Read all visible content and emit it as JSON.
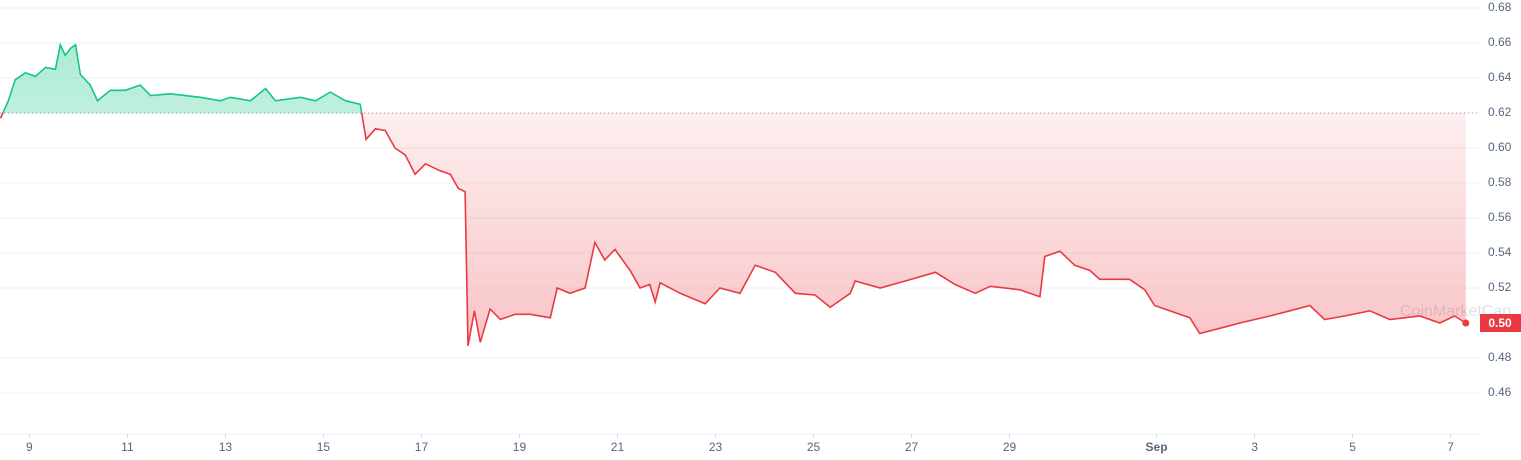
{
  "chart_data": {
    "type": "line",
    "x": [
      8.41,
      8.57,
      8.71,
      8.92,
      9.12,
      9.33,
      9.53,
      9.63,
      9.73,
      9.84,
      9.94,
      10.04,
      10.24,
      10.39,
      10.65,
      10.96,
      11.26,
      11.47,
      11.88,
      12.49,
      12.9,
      13.1,
      13.51,
      13.82,
      14.02,
      14.53,
      14.84,
      15.14,
      15.45,
      15.75,
      15.87,
      16.06,
      16.26,
      16.46,
      16.67,
      16.87,
      17.08,
      17.38,
      17.59,
      17.75,
      17.89,
      17.95,
      18.08,
      18.2,
      18.4,
      18.61,
      18.91,
      19.22,
      19.63,
      19.77,
      20.03,
      20.34,
      20.54,
      20.74,
      20.95,
      21.26,
      21.46,
      21.66,
      21.77,
      21.87,
      22.28,
      22.79,
      23.09,
      23.5,
      23.81,
      24.22,
      24.63,
      25.03,
      25.34,
      25.75,
      25.85,
      26.36,
      26.87,
      27.49,
      27.89,
      28.3,
      28.61,
      29.21,
      29.62,
      29.72,
      30.03,
      30.33,
      30.64,
      30.84,
      31.45,
      31.76,
      31.96,
      32.37,
      32.68,
      32.88,
      33.29,
      33.7,
      34.31,
      34.72,
      35.13,
      35.43,
      35.84,
      36.35,
      36.76,
      37.37,
      37.78,
      38.08,
      38.31
    ],
    "values": [
      0.617,
      0.627,
      0.639,
      0.643,
      0.641,
      0.646,
      0.645,
      0.659,
      0.653,
      0.657,
      0.659,
      0.642,
      0.636,
      0.627,
      0.633,
      0.633,
      0.636,
      0.63,
      0.631,
      0.629,
      0.627,
      0.629,
      0.627,
      0.634,
      0.627,
      0.629,
      0.627,
      0.632,
      0.627,
      0.625,
      0.605,
      0.611,
      0.61,
      0.6,
      0.596,
      0.585,
      0.591,
      0.587,
      0.585,
      0.577,
      0.575,
      0.487,
      0.507,
      0.489,
      0.508,
      0.502,
      0.505,
      0.505,
      0.503,
      0.52,
      0.517,
      0.52,
      0.546,
      0.536,
      0.542,
      0.53,
      0.52,
      0.522,
      0.512,
      0.523,
      0.517,
      0.511,
      0.52,
      0.517,
      0.533,
      0.529,
      0.517,
      0.516,
      0.509,
      0.517,
      0.524,
      0.52,
      0.524,
      0.529,
      0.522,
      0.517,
      0.521,
      0.519,
      0.515,
      0.538,
      0.541,
      0.533,
      0.53,
      0.525,
      0.525,
      0.519,
      0.51,
      0.506,
      0.503,
      0.494,
      0.497,
      0.5,
      0.504,
      0.507,
      0.51,
      0.502,
      0.504,
      0.507,
      0.502,
      0.504,
      0.5,
      0.504,
      0.5
    ],
    "baseline": 0.62,
    "color_above": "#16c784",
    "color_below": "#ea3943",
    "current_price_label": "0.50",
    "watermark": "CoinMarketCap",
    "xlim": [
      8.4,
      38.6
    ],
    "xticks": [
      9,
      11,
      13,
      15,
      17,
      19,
      21,
      23,
      25,
      27,
      29,
      {
        "value": 32,
        "label": "Sep"
      },
      {
        "value": 34,
        "label": "3"
      },
      {
        "value": 36,
        "label": "5"
      },
      {
        "value": 38,
        "label": "7"
      }
    ],
    "ylim": [
      0.44,
      0.68
    ],
    "yticks": [
      0.46,
      0.48,
      0.52,
      0.54,
      0.56,
      0.58,
      {
        "value": 0.6,
        "label": "0.60"
      },
      0.62,
      0.64,
      0.66,
      0.68
    ],
    "grid": true
  }
}
